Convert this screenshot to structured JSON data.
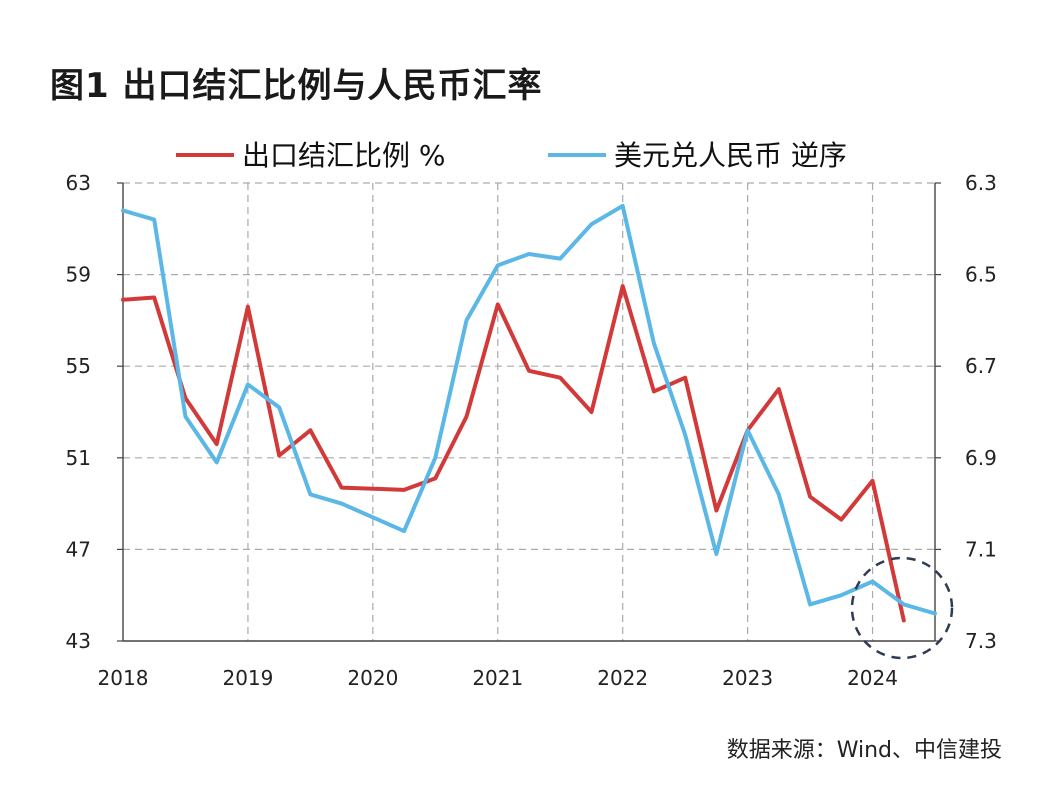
{
  "title": "图1  出口结汇比例与人民币汇率",
  "source": "数据来源：Wind、中信建投",
  "chart_data": {
    "type": "line",
    "grid": true,
    "x_tick_labels": [
      "2018",
      "2019",
      "2020",
      "2021",
      "2022",
      "2023",
      "2024"
    ],
    "y_left": {
      "lim": [
        43,
        63
      ],
      "ticks": [
        "63",
        "59",
        "55",
        "51",
        "47",
        "43"
      ]
    },
    "y_right": {
      "lim": [
        6.3,
        7.3
      ],
      "inverted": true,
      "ticks": [
        "6.3",
        "6.5",
        "6.7",
        "6.9",
        "7.1",
        "7.3"
      ]
    },
    "series": [
      {
        "name": "出口结汇比例 %",
        "color": "#d23a3a",
        "axis": "left",
        "x": [
          2018.0,
          2018.25,
          2018.5,
          2018.75,
          2019.0,
          2019.25,
          2019.5,
          2019.75,
          2020.0,
          2020.25,
          2020.5,
          2020.75,
          2021.0,
          2021.25,
          2021.5,
          2021.75,
          2022.0,
          2022.25,
          2022.5,
          2022.75,
          2023.0,
          2023.25,
          2023.5,
          2023.75,
          2024.0,
          2024.25
        ],
        "values": [
          57.9,
          58.0,
          53.6,
          51.6,
          57.6,
          51.1,
          52.2,
          49.7,
          49.65,
          49.6,
          50.1,
          52.8,
          57.7,
          54.8,
          54.5,
          53.0,
          58.5,
          53.9,
          54.5,
          48.7,
          52.2,
          54.0,
          49.3,
          48.3,
          50.0,
          43.9
        ]
      },
      {
        "name": "美元兑人民币 逆序",
        "color": "#5bb7e5",
        "axis": "right",
        "x": [
          2018.0,
          2018.25,
          2018.5,
          2018.75,
          2019.0,
          2019.25,
          2019.5,
          2019.75,
          2020.0,
          2020.25,
          2020.5,
          2020.75,
          2021.0,
          2021.25,
          2021.5,
          2021.75,
          2022.0,
          2022.25,
          2022.5,
          2022.75,
          2023.0,
          2023.25,
          2023.5,
          2023.75,
          2024.0,
          2024.25,
          2024.5
        ],
        "values": [
          6.36,
          6.38,
          6.81,
          6.91,
          6.74,
          6.79,
          6.98,
          7.0,
          7.03,
          7.06,
          6.9,
          6.6,
          6.48,
          6.455,
          6.465,
          6.39,
          6.35,
          6.65,
          6.85,
          7.11,
          6.84,
          6.98,
          7.22,
          7.2,
          7.17,
          7.22,
          7.24
        ]
      }
    ],
    "annotations": [
      {
        "type": "dashed-circle",
        "note": "highlights latest values"
      }
    ]
  }
}
